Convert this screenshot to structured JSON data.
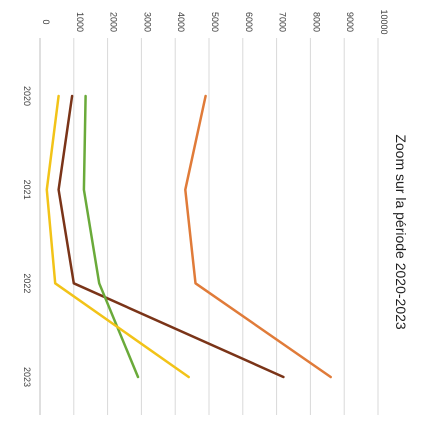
{
  "chart_data": {
    "type": "line",
    "title": "Zoom sur la période 2020-2023",
    "orientation": "rotated-90-clockwise",
    "x": [
      "2020",
      "2021",
      "2022",
      "2023"
    ],
    "y_ticks": [
      0,
      1000,
      2000,
      3000,
      4000,
      5000,
      6000,
      7000,
      8000,
      9000,
      10000
    ],
    "ylim": [
      0,
      10000
    ],
    "grid": true,
    "series": [
      {
        "color": "#E07B39",
        "values": [
          4900,
          4300,
          4600,
          8600
        ]
      },
      {
        "color": "#7A3418",
        "values": [
          950,
          550,
          1000,
          7200
        ]
      },
      {
        "color": "#6AAA3A",
        "values": [
          1350,
          1300,
          1750,
          2900
        ]
      },
      {
        "color": "#F2C318",
        "values": [
          550,
          200,
          450,
          4400
        ]
      }
    ]
  }
}
